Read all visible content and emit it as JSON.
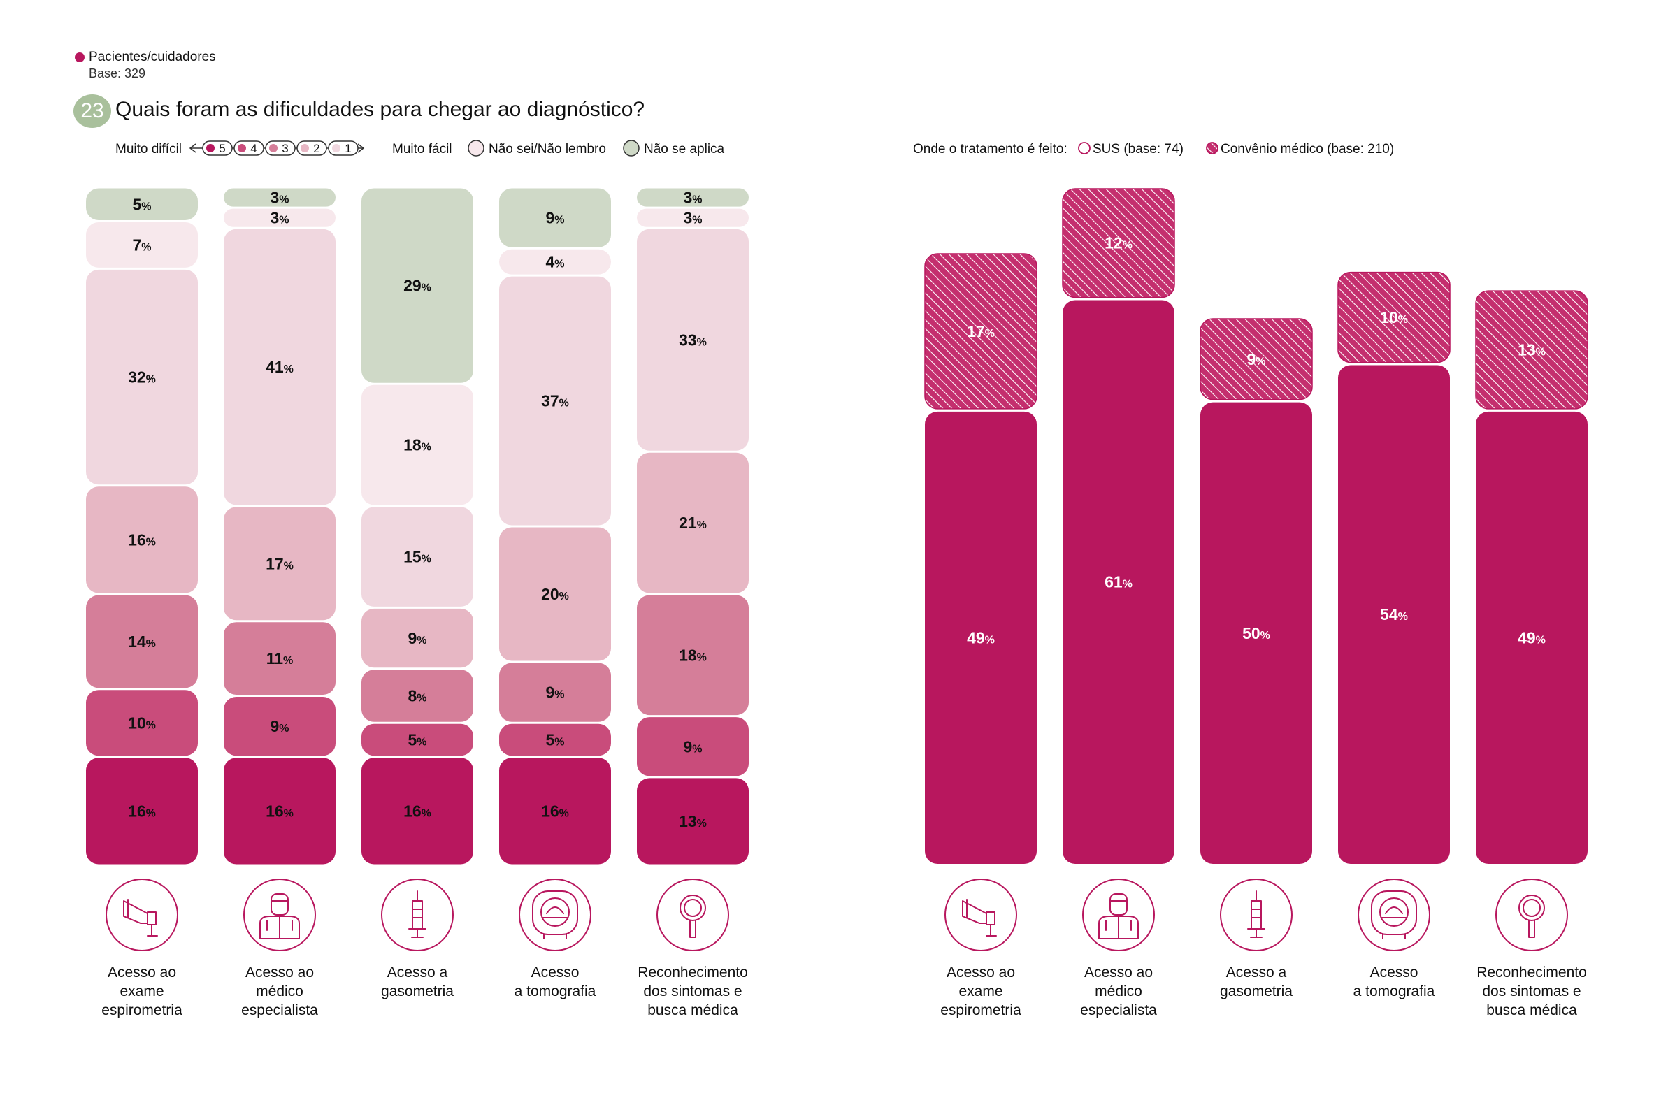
{
  "header": {
    "respondent_label": "Pacientes/cuidadores",
    "base_label": "Base: 329",
    "question_number": "23",
    "question_title": "Quais foram as dificuldades para chegar ao diagnóstico?"
  },
  "colors": {
    "muito_dificil_5": "#b8175e",
    "level_4": "#c94c7b",
    "level_3": "#d57e99",
    "level_2": "#e7b7c4",
    "muito_facil_1": "#f0d7df",
    "nao_sei": "#f7e8ec",
    "nao_se_aplica": "#cfd9c7",
    "tratamento": "#b8175e"
  },
  "legend_left": {
    "muito_dificil": "Muito difícil",
    "levels": [
      "5",
      "4",
      "3",
      "2",
      "1"
    ],
    "muito_facil": "Muito fácil",
    "nao_sei": "Não sei/Não lembro",
    "nao_se_aplica": "Não se aplica"
  },
  "legend_right": {
    "title": "Onde o tratamento é feito:",
    "sus": "SUS (base: 74)",
    "convenio": "Convênio médico (base: 210)"
  },
  "chart_data": [
    {
      "type": "bar",
      "stacked": true,
      "categories": [
        "Acesso ao exame espirometria",
        "Acesso ao médico especialista",
        "Acesso a gasometria",
        "Acesso a tomografia",
        "Reconhecimento dos sintomas e busca médica"
      ],
      "series": [
        {
          "name": "5",
          "values": [
            16,
            16,
            16,
            16,
            13
          ]
        },
        {
          "name": "4",
          "values": [
            10,
            9,
            5,
            5,
            9
          ]
        },
        {
          "name": "3",
          "values": [
            14,
            11,
            8,
            9,
            18
          ]
        },
        {
          "name": "2",
          "values": [
            16,
            17,
            9,
            20,
            21
          ]
        },
        {
          "name": "1",
          "values": [
            32,
            41,
            15,
            37,
            33
          ]
        },
        {
          "name": "Não sei/Não lembro",
          "values": [
            7,
            3,
            18,
            4,
            3
          ]
        },
        {
          "name": "Não se aplica",
          "values": [
            5,
            3,
            29,
            9,
            3
          ]
        }
      ],
      "unit": "%"
    },
    {
      "type": "bar",
      "stacked": true,
      "categories": [
        "Acesso ao exame espirometria",
        "Acesso ao médico especialista",
        "Acesso a gasometria",
        "Acesso a tomografia",
        "Reconhecimento dos sintomas e busca médica"
      ],
      "series": [
        {
          "name": "SUS (base: 74)",
          "values": [
            49,
            61,
            50,
            54,
            49
          ]
        },
        {
          "name": "Convênio médico (base: 210)",
          "values": [
            17,
            12,
            9,
            10,
            13
          ]
        }
      ],
      "unit": "%",
      "ylim": [
        0,
        73
      ]
    }
  ],
  "category_labels": [
    {
      "lines": [
        "Acesso ao",
        "exame",
        "espirometria"
      ],
      "icon": "spirometer-icon"
    },
    {
      "lines": [
        "Acesso ao",
        "médico",
        "especialista"
      ],
      "icon": "doctor-icon"
    },
    {
      "lines": [
        "Acesso a",
        "gasometria"
      ],
      "icon": "syringe-icon"
    },
    {
      "lines": [
        "Acesso",
        "a tomografia"
      ],
      "icon": "tomography-icon"
    },
    {
      "lines": [
        "Reconhecimento",
        "dos sintomas e",
        "busca médica"
      ],
      "icon": "magnifier-icon"
    }
  ]
}
